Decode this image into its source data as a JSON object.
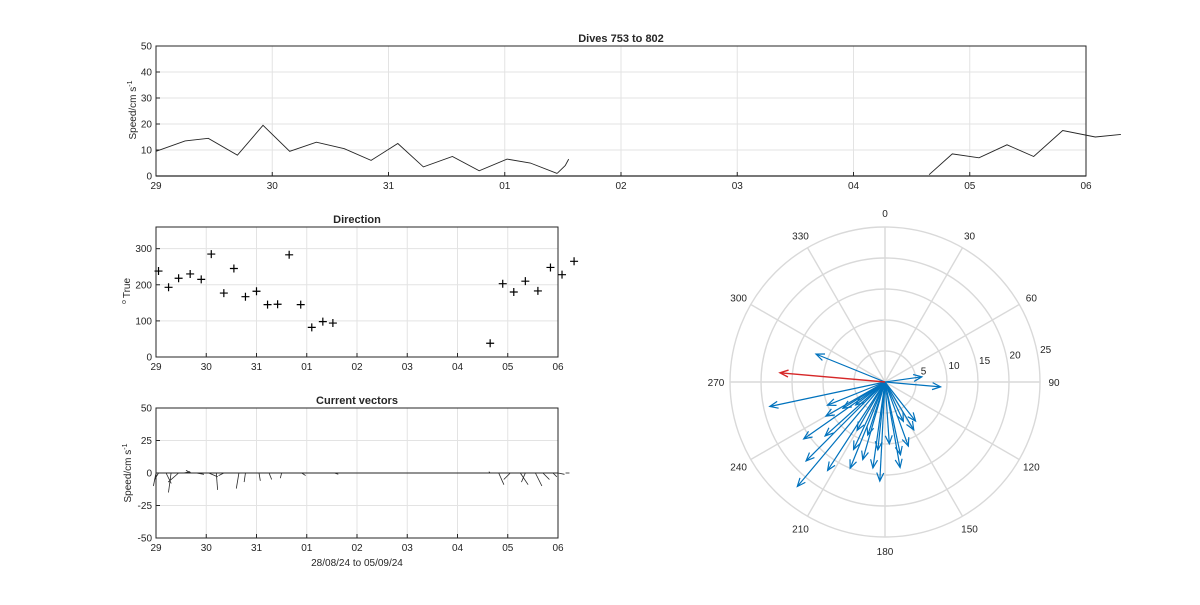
{
  "figure": {
    "colors": {
      "line": "#262626",
      "grid": "#e3e3e3",
      "vector": "#0072bd",
      "mean_vector": "#d62728",
      "polar_grid": "#d9d9d9"
    },
    "speed_panel": {
      "title": "Dives 753 to 802",
      "ylabel": "Speed/cm s",
      "ylabel_sup": "-1",
      "xticklabels": [
        "29",
        "30",
        "31",
        "01",
        "02",
        "03",
        "04",
        "05",
        "06"
      ],
      "yticklabels": [
        "0",
        "10",
        "20",
        "30",
        "40",
        "50"
      ]
    },
    "direction_panel": {
      "title": "Direction",
      "ylabel": "True",
      "ylabel_pre": "o",
      "xticklabels": [
        "29",
        "30",
        "31",
        "01",
        "02",
        "03",
        "04",
        "05",
        "06"
      ],
      "yticklabels": [
        "0",
        "100",
        "200",
        "300"
      ]
    },
    "vector_panel": {
      "title": "Current vectors",
      "ylabel": "Speed/cm s",
      "ylabel_sup": "-1",
      "xlabel": "28/08/24 to 05/09/24",
      "xticklabels": [
        "29",
        "30",
        "31",
        "01",
        "02",
        "03",
        "04",
        "05",
        "06"
      ],
      "yticklabels": [
        "-50",
        "-25",
        "0",
        "25",
        "50"
      ]
    },
    "polar_panel": {
      "angle_labels": [
        "0",
        "30",
        "60",
        "90",
        "120",
        "150",
        "180",
        "210",
        "240",
        "270",
        "300",
        "330"
      ],
      "radius_labels": [
        "5",
        "10",
        "15",
        "20",
        "25"
      ]
    }
  },
  "chart_data": [
    {
      "type": "line",
      "title": "Dives 753 to 802",
      "ylabel": "Speed/cm s-1",
      "xlim": [
        29,
        37
      ],
      "ylim": [
        0,
        50
      ],
      "x_unit": "days (29 Aug = 29)",
      "segments": [
        {
          "x": [
            29.0,
            29.25,
            29.45,
            29.7,
            29.92,
            30.15,
            30.38,
            30.62,
            30.85,
            31.08,
            31.3,
            31.55,
            31.78,
            32.02,
            32.22,
            32.45
          ],
          "y": [
            9.5,
            13.5,
            14.5,
            8.0,
            19.5,
            9.5,
            13.0,
            10.5,
            6.0,
            12.5,
            3.5,
            7.5,
            2.0,
            6.5,
            5.0,
            1.0
          ]
        },
        {
          "x": [
            32.45,
            32.52,
            32.55
          ],
          "y": [
            1.0,
            4.0,
            6.5
          ]
        },
        {
          "x": [
            35.65,
            35.85,
            36.08,
            36.32,
            36.55,
            36.8,
            37.08,
            37.3
          ],
          "y": [
            0.5,
            8.5,
            7.0,
            12.0,
            7.5,
            17.5,
            15.0,
            16.0
          ]
        }
      ]
    },
    {
      "type": "scatter",
      "title": "Direction",
      "ylabel": "o True",
      "xlim": [
        29,
        37
      ],
      "ylim": [
        0,
        360
      ],
      "x": [
        29.05,
        29.25,
        29.45,
        29.68,
        29.9,
        30.1,
        30.35,
        30.55,
        30.78,
        31.0,
        31.22,
        31.42,
        31.65,
        31.88,
        32.1,
        32.32,
        32.52,
        35.65,
        35.9,
        36.12,
        36.35,
        36.6,
        36.85,
        37.08,
        37.32
      ],
      "y": [
        238,
        193,
        218,
        230,
        215,
        285,
        177,
        245,
        167,
        182,
        145,
        146,
        283,
        145,
        82,
        98,
        94,
        38,
        203,
        180,
        210,
        183,
        248,
        228,
        265
      ]
    },
    {
      "type": "line",
      "title": "Current vectors",
      "ylabel": "Speed/cm s-1",
      "xlabel": "28/08/24 to 05/09/24",
      "xlim": [
        29,
        37
      ],
      "ylim": [
        -50,
        50
      ],
      "vectors": [
        {
          "x": 29.0,
          "u": -2,
          "v": -10
        },
        {
          "x": 29.05,
          "u": -3,
          "v": -5
        },
        {
          "x": 29.2,
          "u": 4,
          "v": -8
        },
        {
          "x": 29.3,
          "u": -2,
          "v": -15
        },
        {
          "x": 29.45,
          "u": -8,
          "v": -7
        },
        {
          "x": 29.55,
          "u": 5,
          "v": 1
        },
        {
          "x": 29.7,
          "u": -4,
          "v": 2
        },
        {
          "x": 29.8,
          "u": 6,
          "v": -1
        },
        {
          "x": 30.05,
          "u": 7,
          "v": -3
        },
        {
          "x": 30.2,
          "u": 1,
          "v": -13
        },
        {
          "x": 30.35,
          "u": -4,
          "v": -2
        },
        {
          "x": 30.65,
          "u": -2,
          "v": -12
        },
        {
          "x": 30.78,
          "u": -1,
          "v": -7
        },
        {
          "x": 31.05,
          "u": 1,
          "v": -6
        },
        {
          "x": 31.25,
          "u": 2,
          "v": -5
        },
        {
          "x": 31.5,
          "u": -1,
          "v": -4
        },
        {
          "x": 31.9,
          "u": 3,
          "v": -2
        },
        {
          "x": 32.22,
          "u": 1,
          "v": 0
        },
        {
          "x": 32.55,
          "u": 3,
          "v": -1
        },
        {
          "x": 35.65,
          "u": -1,
          "v": 1
        },
        {
          "x": 35.82,
          "u": 4,
          "v": -9
        },
        {
          "x": 36.05,
          "u": -5,
          "v": -5
        },
        {
          "x": 36.25,
          "u": 6,
          "v": -9
        },
        {
          "x": 36.35,
          "u": -3,
          "v": -7
        },
        {
          "x": 36.55,
          "u": 5,
          "v": -10
        },
        {
          "x": 36.7,
          "u": 5,
          "v": -5
        },
        {
          "x": 36.9,
          "u": 3,
          "v": -3
        },
        {
          "x": 37.0,
          "u": 5,
          "v": -1
        },
        {
          "x": 37.15,
          "u": 3,
          "v": 0
        }
      ]
    },
    {
      "type": "scatter",
      "title": "",
      "rlim": [
        0,
        25
      ],
      "vectors_dir_speed": [
        [
          292,
          12
        ],
        [
          258,
          19
        ],
        [
          240,
          11
        ],
        [
          235,
          16
        ],
        [
          238,
          8
        ],
        [
          220,
          22
        ],
        [
          228,
          13
        ],
        [
          202,
          15
        ],
        [
          213,
          17
        ],
        [
          196,
          13
        ],
        [
          205,
          12
        ],
        [
          188,
          14
        ],
        [
          183,
          16
        ],
        [
          170,
          14
        ],
        [
          176,
          10
        ],
        [
          160,
          11
        ],
        [
          149,
          9
        ],
        [
          168,
          12
        ],
        [
          142,
          8
        ],
        [
          95,
          9
        ],
        [
          82,
          6
        ],
        [
          248,
          10
        ],
        [
          225,
          18
        ],
        [
          198,
          9
        ],
        [
          155,
          7
        ],
        [
          232,
          6
        ],
        [
          210,
          9
        ],
        [
          186,
          11
        ]
      ],
      "mean_vector": [
        275,
        17
      ]
    }
  ]
}
